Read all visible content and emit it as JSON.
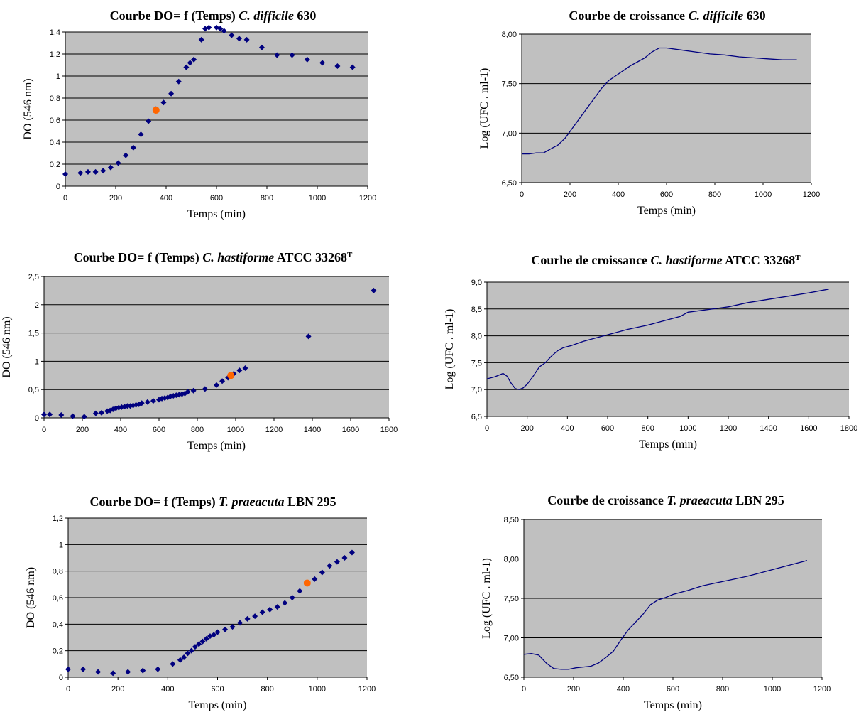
{
  "chart_data": [
    {
      "id": "chart-1",
      "type": "scatter",
      "title_parts": [
        {
          "text": "Courbe DO= f (Temps) ",
          "style": "normal"
        },
        {
          "text": "C. difficile",
          "style": "italic"
        },
        {
          "text": " 630",
          "style": "normal"
        }
      ],
      "xlabel": "Temps (min)",
      "ylabel": "DO (546 nm)",
      "xlim": [
        0,
        1200
      ],
      "ylim": [
        0,
        1.4
      ],
      "xticks": [
        0,
        200,
        400,
        600,
        800,
        1000,
        1200
      ],
      "yticks": [
        0,
        0.2,
        0.4,
        0.6,
        0.8,
        1,
        1.2,
        1.4
      ],
      "ytick_labels": [
        "0",
        "0,2",
        "0,4",
        "0,6",
        "0,8",
        "1",
        "1,2",
        "1,4"
      ],
      "grid": "horizontal",
      "series": [
        {
          "marker": "diamond",
          "color": "#00007f",
          "x": [
            0,
            60,
            90,
            120,
            150,
            180,
            210,
            240,
            270,
            300,
            330,
            360,
            390,
            420,
            450,
            480,
            495,
            510,
            540,
            555,
            570,
            600,
            615,
            630,
            660,
            690,
            720,
            780,
            840,
            900,
            960,
            1020,
            1080,
            1140
          ],
          "y": [
            0.11,
            0.12,
            0.13,
            0.13,
            0.14,
            0.17,
            0.21,
            0.28,
            0.35,
            0.47,
            0.59,
            0.7,
            0.76,
            0.84,
            0.95,
            1.08,
            1.12,
            1.15,
            1.33,
            1.43,
            1.44,
            1.44,
            1.43,
            1.41,
            1.37,
            1.34,
            1.33,
            1.26,
            1.19,
            1.19,
            1.15,
            1.12,
            1.09,
            1.08
          ]
        },
        {
          "marker": "circle",
          "color": "#ff6600",
          "x": [
            360
          ],
          "y": [
            0.69
          ]
        }
      ]
    },
    {
      "id": "chart-2",
      "type": "line",
      "title_parts": [
        {
          "text": "Courbe de croissance ",
          "style": "normal"
        },
        {
          "text": "C. difficile",
          "style": "italic"
        },
        {
          "text": " 630",
          "style": "normal"
        }
      ],
      "xlabel": "Temps (min)",
      "ylabel": "Log (UFC . ml-1)",
      "xlim": [
        0,
        1200
      ],
      "ylim": [
        6.5,
        8.0
      ],
      "xticks": [
        0,
        200,
        400,
        600,
        800,
        1000,
        1200
      ],
      "yticks": [
        6.5,
        7.0,
        7.5,
        8.0
      ],
      "ytick_labels": [
        "6,50",
        "7,00",
        "7,50",
        "8,00"
      ],
      "grid": "horizontal",
      "series": [
        {
          "color": "#00007f",
          "x": [
            0,
            30,
            60,
            90,
            120,
            150,
            180,
            210,
            240,
            270,
            300,
            330,
            360,
            390,
            420,
            450,
            480,
            510,
            540,
            570,
            600,
            660,
            720,
            780,
            840,
            900,
            960,
            1020,
            1080,
            1140
          ],
          "y": [
            6.79,
            6.79,
            6.8,
            6.8,
            6.84,
            6.88,
            6.95,
            7.05,
            7.15,
            7.25,
            7.35,
            7.45,
            7.53,
            7.58,
            7.63,
            7.68,
            7.72,
            7.76,
            7.82,
            7.86,
            7.86,
            7.84,
            7.82,
            7.8,
            7.79,
            7.77,
            7.76,
            7.75,
            7.74,
            7.74
          ]
        }
      ]
    },
    {
      "id": "chart-3",
      "type": "scatter",
      "title_parts": [
        {
          "text": "Courbe DO= f (Temps) ",
          "style": "normal"
        },
        {
          "text": "C. hastiforme",
          "style": "italic"
        },
        {
          "text": " ATCC 33268",
          "style": "normal"
        },
        {
          "text": "T",
          "style": "superscript"
        }
      ],
      "xlabel": "Temps (min)",
      "ylabel": "DO (546 nm)",
      "xlim": [
        0,
        1800
      ],
      "ylim": [
        0,
        2.5
      ],
      "xticks": [
        0,
        200,
        400,
        600,
        800,
        1000,
        1200,
        1400,
        1600,
        1800
      ],
      "yticks": [
        0,
        0.5,
        1,
        1.5,
        2,
        2.5
      ],
      "ytick_labels": [
        "0",
        "0,5",
        "1",
        "1,5",
        "2",
        "2,5"
      ],
      "grid": "horizontal",
      "series": [
        {
          "marker": "diamond",
          "color": "#00007f",
          "x": [
            0,
            30,
            90,
            150,
            210,
            270,
            300,
            330,
            345,
            360,
            375,
            390,
            405,
            420,
            435,
            450,
            465,
            480,
            495,
            510,
            540,
            570,
            600,
            615,
            630,
            645,
            660,
            675,
            690,
            705,
            720,
            735,
            750,
            780,
            840,
            900,
            930,
            960,
            990,
            1020,
            1050,
            1380,
            1720
          ],
          "y": [
            0.06,
            0.06,
            0.05,
            0.03,
            0.02,
            0.08,
            0.09,
            0.12,
            0.13,
            0.15,
            0.17,
            0.18,
            0.19,
            0.2,
            0.21,
            0.21,
            0.22,
            0.23,
            0.24,
            0.26,
            0.28,
            0.3,
            0.32,
            0.34,
            0.35,
            0.36,
            0.38,
            0.39,
            0.4,
            0.41,
            0.42,
            0.43,
            0.46,
            0.48,
            0.51,
            0.58,
            0.65,
            0.71,
            0.78,
            0.84,
            0.88,
            1.44,
            2.25
          ]
        },
        {
          "marker": "circle",
          "color": "#ff6600",
          "x": [
            975
          ],
          "y": [
            0.75
          ]
        }
      ]
    },
    {
      "id": "chart-4",
      "type": "line",
      "title_parts": [
        {
          "text": "Courbe de croissance ",
          "style": "normal"
        },
        {
          "text": "C. hastiforme",
          "style": "italic"
        },
        {
          "text": " ATCC 33268",
          "style": "normal"
        },
        {
          "text": "T",
          "style": "superscript"
        }
      ],
      "xlabel": "Temps (min)",
      "ylabel": "Log (UFC . ml-1)",
      "xlim": [
        0,
        1800
      ],
      "ylim": [
        6.5,
        9.0
      ],
      "xticks": [
        0,
        200,
        400,
        600,
        800,
        1000,
        1200,
        1400,
        1600,
        1800
      ],
      "yticks": [
        6.5,
        7.0,
        7.5,
        8.0,
        8.5,
        9.0
      ],
      "ytick_labels": [
        "6,5",
        "7,0",
        "7,5",
        "8,0",
        "8,5",
        "9,0"
      ],
      "grid": "horizontal",
      "series": [
        {
          "color": "#00007f",
          "x": [
            0,
            40,
            80,
            100,
            120,
            140,
            160,
            180,
            200,
            230,
            260,
            290,
            320,
            350,
            380,
            420,
            480,
            540,
            600,
            700,
            800,
            900,
            960,
            1000,
            1100,
            1200,
            1300,
            1400,
            1500,
            1600,
            1700
          ],
          "y": [
            7.2,
            7.24,
            7.3,
            7.25,
            7.12,
            7.02,
            7.0,
            7.03,
            7.1,
            7.25,
            7.42,
            7.5,
            7.62,
            7.72,
            7.78,
            7.82,
            7.9,
            7.96,
            8.02,
            8.12,
            8.2,
            8.3,
            8.36,
            8.44,
            8.49,
            8.54,
            8.62,
            8.68,
            8.74,
            8.8,
            8.87
          ]
        }
      ]
    },
    {
      "id": "chart-5",
      "type": "scatter",
      "title_parts": [
        {
          "text": "Courbe DO= f (Temps) ",
          "style": "normal"
        },
        {
          "text": "T. praeacuta",
          "style": "italic"
        },
        {
          "text": " LBN 295",
          "style": "normal"
        }
      ],
      "xlabel": "Temps (min)",
      "ylabel": "DO (546 nm)",
      "xlim": [
        0,
        1200
      ],
      "ylim": [
        0,
        1.2
      ],
      "xticks": [
        0,
        200,
        400,
        600,
        800,
        1000,
        1200
      ],
      "yticks": [
        0,
        0.2,
        0.4,
        0.6,
        0.8,
        1,
        1.2
      ],
      "ytick_labels": [
        "0",
        "0,2",
        "0,4",
        "0,6",
        "0,8",
        "1",
        "1,2"
      ],
      "grid": "horizontal",
      "series": [
        {
          "marker": "diamond",
          "color": "#00007f",
          "x": [
            0,
            60,
            120,
            180,
            240,
            300,
            360,
            420,
            450,
            465,
            480,
            495,
            510,
            525,
            540,
            555,
            570,
            585,
            600,
            630,
            660,
            690,
            720,
            750,
            780,
            810,
            840,
            870,
            900,
            930,
            990,
            1020,
            1050,
            1080,
            1110,
            1140
          ],
          "y": [
            0.06,
            0.06,
            0.04,
            0.03,
            0.04,
            0.05,
            0.06,
            0.1,
            0.13,
            0.15,
            0.18,
            0.2,
            0.23,
            0.25,
            0.27,
            0.29,
            0.31,
            0.32,
            0.34,
            0.36,
            0.38,
            0.41,
            0.44,
            0.46,
            0.49,
            0.51,
            0.53,
            0.56,
            0.6,
            0.65,
            0.74,
            0.79,
            0.84,
            0.87,
            0.9,
            0.94
          ]
        },
        {
          "marker": "circle",
          "color": "#ff6600",
          "x": [
            960
          ],
          "y": [
            0.71
          ]
        }
      ]
    },
    {
      "id": "chart-6",
      "type": "line",
      "title_parts": [
        {
          "text": "Courbe de croissance ",
          "style": "normal"
        },
        {
          "text": "T. praeacuta",
          "style": "italic"
        },
        {
          "text": " LBN 295",
          "style": "normal"
        }
      ],
      "xlabel": "Temps (min)",
      "ylabel": "Log (UFC . ml-1)",
      "xlim": [
        0,
        1200
      ],
      "ylim": [
        6.5,
        8.5
      ],
      "xticks": [
        0,
        200,
        400,
        600,
        800,
        1000,
        1200
      ],
      "yticks": [
        6.5,
        7.0,
        7.5,
        8.0,
        8.5
      ],
      "ytick_labels": [
        "6,50",
        "7,00",
        "7,50",
        "8,00",
        "8,50"
      ],
      "grid": "horizontal",
      "series": [
        {
          "color": "#00007f",
          "x": [
            0,
            30,
            60,
            90,
            120,
            150,
            180,
            210,
            240,
            270,
            300,
            330,
            360,
            390,
            420,
            450,
            480,
            510,
            540,
            570,
            600,
            660,
            720,
            780,
            840,
            900,
            960,
            1020,
            1080,
            1140
          ],
          "y": [
            6.79,
            6.8,
            6.78,
            6.68,
            6.61,
            6.6,
            6.6,
            6.62,
            6.63,
            6.64,
            6.68,
            6.75,
            6.83,
            6.97,
            7.1,
            7.2,
            7.3,
            7.42,
            7.48,
            7.51,
            7.55,
            7.6,
            7.66,
            7.7,
            7.74,
            7.78,
            7.83,
            7.88,
            7.93,
            7.98
          ]
        }
      ]
    }
  ]
}
